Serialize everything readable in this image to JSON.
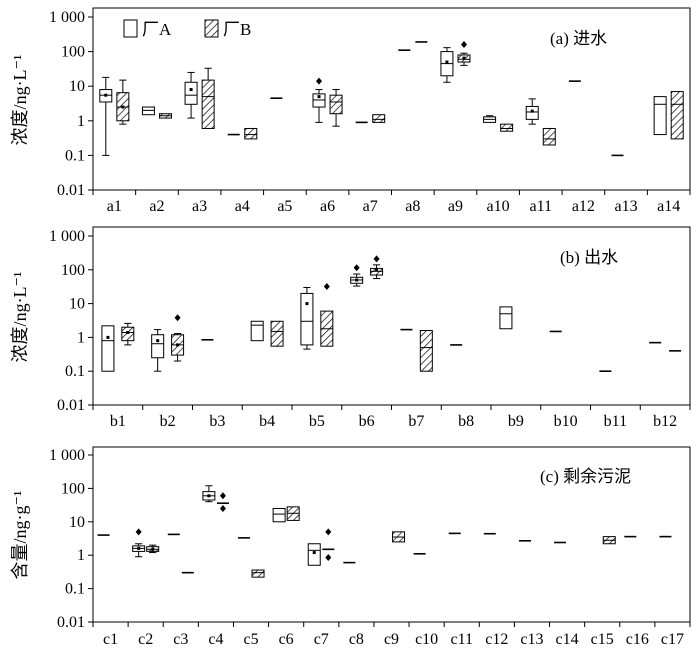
{
  "legend": [
    {
      "name": "厂A",
      "pattern": "open"
    },
    {
      "name": "厂B",
      "pattern": "hatch"
    }
  ],
  "chart_data": [
    {
      "type": "box",
      "title": "(a) 进水",
      "ylabel": "浓度/ng·L⁻¹",
      "yscale": "log",
      "ylim": [
        0.01,
        1000
      ],
      "yticks": [
        "0.01",
        "0.1",
        "1",
        "10",
        "100",
        "1 000"
      ],
      "categories": [
        "a1",
        "a2",
        "a3",
        "a4",
        "a5",
        "a6",
        "a7",
        "a8",
        "a9",
        "a10",
        "a11",
        "a12",
        "a13",
        "a14"
      ],
      "series": [
        {
          "name": "厂A",
          "boxes": [
            {
              "cat": "a1",
              "min": 0.1,
              "q1": 3.5,
              "median": 5.5,
              "q3": 8,
              "max": 18,
              "mean": 5.5,
              "outliers": []
            },
            {
              "cat": "a2",
              "min": 1.5,
              "q1": 1.5,
              "median": 2,
              "q3": 2.5,
              "max": 2.5,
              "mean": null,
              "outliers": []
            },
            {
              "cat": "a3",
              "min": 1.2,
              "q1": 3,
              "median": 5.5,
              "q3": 13,
              "max": 25,
              "mean": 8,
              "outliers": []
            },
            {
              "cat": "a4",
              "min": 0.4,
              "q1": 0.4,
              "median": 0.4,
              "q3": 0.4,
              "max": 0.4,
              "mean": null,
              "outliers": []
            },
            {
              "cat": "a5",
              "min": 4.5,
              "q1": 4.5,
              "median": 4.5,
              "q3": 4.5,
              "max": 4.5,
              "mean": null,
              "outliers": []
            },
            {
              "cat": "a6",
              "min": 0.9,
              "q1": 2.5,
              "median": 4,
              "q3": 6,
              "max": 8,
              "mean": 5,
              "outliers": [
                14
              ]
            },
            {
              "cat": "a7",
              "min": 0.9,
              "q1": 0.9,
              "median": 0.9,
              "q3": 0.9,
              "max": 0.9,
              "mean": null,
              "outliers": []
            },
            {
              "cat": "a8",
              "min": 110,
              "q1": 110,
              "median": 110,
              "q3": 110,
              "max": 110,
              "mean": null,
              "outliers": []
            },
            {
              "cat": "a9",
              "min": 13,
              "q1": 20,
              "median": 45,
              "q3": 100,
              "max": 130,
              "mean": 50,
              "outliers": []
            },
            {
              "cat": "a10",
              "min": 0.9,
              "q1": 0.9,
              "median": 1.1,
              "q3": 1.3,
              "max": 1.4,
              "mean": null,
              "outliers": []
            },
            {
              "cat": "a11",
              "min": 0.8,
              "q1": 1.1,
              "median": 1.8,
              "q3": 2.6,
              "max": 4.3,
              "mean": 1.9,
              "outliers": []
            },
            {
              "cat": "a12",
              "min": 14,
              "q1": 14,
              "median": 14,
              "q3": 14,
              "max": 14,
              "mean": null,
              "outliers": []
            },
            {
              "cat": "a13",
              "min": 0.1,
              "q1": 0.1,
              "median": 0.1,
              "q3": 0.1,
              "max": 0.1,
              "mean": null,
              "outliers": []
            },
            {
              "cat": "a14",
              "min": 0.4,
              "q1": 0.4,
              "median": 3,
              "q3": 5,
              "max": 5,
              "mean": null,
              "outliers": []
            }
          ]
        },
        {
          "name": "厂B",
          "boxes": [
            {
              "cat": "a1",
              "min": 0.8,
              "q1": 1,
              "median": 2.5,
              "q3": 6.5,
              "max": 15,
              "mean": 2.5,
              "outliers": []
            },
            {
              "cat": "a2",
              "min": 1.2,
              "q1": 1.2,
              "median": 1.4,
              "q3": 1.6,
              "max": 1.6,
              "mean": null,
              "outliers": []
            },
            {
              "cat": "a3",
              "min": 0.6,
              "q1": 0.6,
              "median": 5,
              "q3": 15,
              "max": 33,
              "mean": null,
              "outliers": []
            },
            {
              "cat": "a4",
              "min": 0.3,
              "q1": 0.3,
              "median": 0.4,
              "q3": 0.6,
              "max": 0.6,
              "mean": null,
              "outliers": []
            },
            {
              "cat": "a6",
              "min": 0.7,
              "q1": 1.6,
              "median": 3.5,
              "q3": 5.5,
              "max": 8,
              "mean": null,
              "outliers": []
            },
            {
              "cat": "a7",
              "min": 0.9,
              "q1": 0.9,
              "median": 1.1,
              "q3": 1.5,
              "max": 1.5,
              "mean": null,
              "outliers": []
            },
            {
              "cat": "a8",
              "min": 190,
              "q1": 190,
              "median": 190,
              "q3": 190,
              "max": 190,
              "mean": null,
              "outliers": []
            },
            {
              "cat": "a9",
              "min": 40,
              "q1": 50,
              "median": 60,
              "q3": 80,
              "max": 90,
              "mean": 65,
              "outliers": [
                160
              ]
            },
            {
              "cat": "a10",
              "min": 0.5,
              "q1": 0.5,
              "median": 0.6,
              "q3": 0.8,
              "max": 0.8,
              "mean": null,
              "outliers": []
            },
            {
              "cat": "a11",
              "min": 0.2,
              "q1": 0.2,
              "median": 0.3,
              "q3": 0.6,
              "max": 0.6,
              "mean": null,
              "outliers": []
            },
            {
              "cat": "a14",
              "min": 0.3,
              "q1": 0.3,
              "median": 3,
              "q3": 7,
              "max": 7,
              "mean": null,
              "outliers": []
            }
          ]
        }
      ]
    },
    {
      "type": "box",
      "title": "(b) 出水",
      "ylabel": "浓度/ng·L⁻¹",
      "yscale": "log",
      "ylim": [
        0.01,
        1000
      ],
      "yticks": [
        "0.01",
        "0.1",
        "1",
        "10",
        "100",
        "1 000"
      ],
      "categories": [
        "b1",
        "b2",
        "b3",
        "b4",
        "b5",
        "b6",
        "b7",
        "b8",
        "b9",
        "b10",
        "b11",
        "b12"
      ],
      "series": [
        {
          "name": "厂A",
          "boxes": [
            {
              "cat": "b1",
              "min": 0.1,
              "q1": 0.1,
              "median": 0.8,
              "q3": 2.2,
              "max": 2.2,
              "mean": 1,
              "outliers": []
            },
            {
              "cat": "b2",
              "min": 0.1,
              "q1": 0.25,
              "median": 0.65,
              "q3": 1.2,
              "max": 1.7,
              "mean": 0.8,
              "outliers": []
            },
            {
              "cat": "b3",
              "min": 0.85,
              "q1": 0.85,
              "median": 0.85,
              "q3": 0.85,
              "max": 0.85,
              "mean": null,
              "outliers": []
            },
            {
              "cat": "b4",
              "min": 0.8,
              "q1": 0.8,
              "median": 2.3,
              "q3": 3,
              "max": 3,
              "mean": null,
              "outliers": []
            },
            {
              "cat": "b5",
              "min": 0.45,
              "q1": 0.6,
              "median": 3,
              "q3": 20,
              "max": 30,
              "mean": 10,
              "outliers": []
            },
            {
              "cat": "b6",
              "min": 33,
              "q1": 40,
              "median": 50,
              "q3": 60,
              "max": 75,
              "mean": 50,
              "outliers": [
                115
              ]
            },
            {
              "cat": "b7",
              "min": 1.7,
              "q1": 1.7,
              "median": 1.7,
              "q3": 1.7,
              "max": 1.7,
              "mean": null,
              "outliers": []
            },
            {
              "cat": "b8",
              "min": 0.6,
              "q1": 0.6,
              "median": 0.6,
              "q3": 0.6,
              "max": 0.6,
              "mean": null,
              "outliers": []
            },
            {
              "cat": "b9",
              "min": 1.8,
              "q1": 1.8,
              "median": 5,
              "q3": 8,
              "max": 8,
              "mean": null,
              "outliers": []
            },
            {
              "cat": "b10",
              "min": 1.5,
              "q1": 1.5,
              "median": 1.5,
              "q3": 1.5,
              "max": 1.5,
              "mean": null,
              "outliers": []
            },
            {
              "cat": "b11",
              "min": 0.1,
              "q1": 0.1,
              "median": 0.1,
              "q3": 0.1,
              "max": 0.1,
              "mean": null,
              "outliers": []
            },
            {
              "cat": "b12",
              "min": 0.7,
              "q1": 0.7,
              "median": 0.7,
              "q3": 0.7,
              "max": 0.7,
              "mean": null,
              "outliers": []
            }
          ]
        },
        {
          "name": "厂B",
          "boxes": [
            {
              "cat": "b1",
              "min": 0.6,
              "q1": 0.8,
              "median": 1.4,
              "q3": 2,
              "max": 2.6,
              "mean": 1.4,
              "outliers": []
            },
            {
              "cat": "b2",
              "min": 0.2,
              "q1": 0.3,
              "median": 0.6,
              "q3": 1.2,
              "max": 1.3,
              "mean": 0.6,
              "outliers": [
                3.8
              ]
            },
            {
              "cat": "b4",
              "min": 0.55,
              "q1": 0.55,
              "median": 1.5,
              "q3": 3,
              "max": 3,
              "mean": null,
              "outliers": []
            },
            {
              "cat": "b5",
              "min": 0.55,
              "q1": 0.55,
              "median": 1.8,
              "q3": 6,
              "max": 6,
              "mean": null,
              "outliers": [
                32
              ]
            },
            {
              "cat": "b6",
              "min": 55,
              "q1": 70,
              "median": 90,
              "q3": 110,
              "max": 140,
              "mean": 100,
              "outliers": [
                210
              ]
            },
            {
              "cat": "b7",
              "min": 0.1,
              "q1": 0.1,
              "median": 0.5,
              "q3": 1.6,
              "max": 1.6,
              "mean": null,
              "outliers": []
            },
            {
              "cat": "b12",
              "min": 0.4,
              "q1": 0.4,
              "median": 0.4,
              "q3": 0.4,
              "max": 0.4,
              "mean": null,
              "outliers": []
            }
          ]
        }
      ]
    },
    {
      "type": "box",
      "title": "(c) 剩余污泥",
      "ylabel": "含量/ng·g⁻¹",
      "yscale": "log",
      "ylim": [
        0.01,
        1000
      ],
      "yticks": [
        "0.01",
        "0.1",
        "1",
        "10",
        "100",
        "1 000"
      ],
      "categories": [
        "c1",
        "c2",
        "c3",
        "c4",
        "c5",
        "c6",
        "c7",
        "c8",
        "c9",
        "c10",
        "c11",
        "c12",
        "c13",
        "c14",
        "c15",
        "c16",
        "c17"
      ],
      "series": [
        {
          "name": "厂A",
          "boxes": [
            {
              "cat": "c1",
              "min": 4,
              "q1": 4,
              "median": 4,
              "q3": 4,
              "max": 4,
              "mean": null,
              "outliers": []
            },
            {
              "cat": "c2",
              "min": 0.9,
              "q1": 1.3,
              "median": 1.6,
              "q3": 1.9,
              "max": 2.2,
              "mean": 1.6,
              "outliers": [
                5
              ]
            },
            {
              "cat": "c3",
              "min": 4.2,
              "q1": 4.2,
              "median": 4.2,
              "q3": 4.2,
              "max": 4.2,
              "mean": null,
              "outliers": []
            },
            {
              "cat": "c4",
              "min": 40,
              "q1": 45,
              "median": 60,
              "q3": 80,
              "max": 120,
              "mean": 60,
              "outliers": []
            },
            {
              "cat": "c5",
              "min": 3.3,
              "q1": 3.3,
              "median": 3.3,
              "q3": 3.3,
              "max": 3.3,
              "mean": null,
              "outliers": []
            },
            {
              "cat": "c6",
              "min": 10,
              "q1": 10,
              "median": 17,
              "q3": 25,
              "max": 25,
              "mean": null,
              "outliers": []
            },
            {
              "cat": "c7",
              "min": 0.5,
              "q1": 0.5,
              "median": 1.4,
              "q3": 2.2,
              "max": 2.2,
              "mean": 1.2,
              "outliers": []
            },
            {
              "cat": "c8",
              "min": 0.6,
              "q1": 0.6,
              "median": 0.6,
              "q3": 0.6,
              "max": 0.6,
              "mean": null,
              "outliers": []
            },
            {
              "cat": "c10",
              "min": 1.1,
              "q1": 1.1,
              "median": 1.1,
              "q3": 1.1,
              "max": 1.1,
              "mean": null,
              "outliers": []
            },
            {
              "cat": "c11",
              "min": 4.5,
              "q1": 4.5,
              "median": 4.5,
              "q3": 4.5,
              "max": 4.5,
              "mean": null,
              "outliers": []
            },
            {
              "cat": "c12",
              "min": 4.4,
              "q1": 4.4,
              "median": 4.4,
              "q3": 4.4,
              "max": 4.4,
              "mean": null,
              "outliers": []
            },
            {
              "cat": "c13",
              "min": 2.7,
              "q1": 2.7,
              "median": 2.7,
              "q3": 2.7,
              "max": 2.7,
              "mean": null,
              "outliers": []
            },
            {
              "cat": "c14",
              "min": 2.4,
              "q1": 2.4,
              "median": 2.4,
              "q3": 2.4,
              "max": 2.4,
              "mean": null,
              "outliers": []
            },
            {
              "cat": "c16",
              "min": 3.6,
              "q1": 3.6,
              "median": 3.6,
              "q3": 3.6,
              "max": 3.6,
              "mean": null,
              "outliers": []
            },
            {
              "cat": "c17",
              "min": 3.6,
              "q1": 3.6,
              "median": 3.6,
              "q3": 3.6,
              "max": 3.6,
              "mean": null,
              "outliers": []
            }
          ]
        },
        {
          "name": "厂B",
          "boxes": [
            {
              "cat": "c2",
              "min": 1.2,
              "q1": 1.3,
              "median": 1.5,
              "q3": 1.8,
              "max": 2,
              "mean": 1.5,
              "outliers": []
            },
            {
              "cat": "c3",
              "min": 0.3,
              "q1": 0.3,
              "median": 0.3,
              "q3": 0.3,
              "max": 0.3,
              "mean": null,
              "outliers": []
            },
            {
              "cat": "c4",
              "min": 36,
              "q1": 36,
              "median": 36,
              "q3": 36,
              "max": 36,
              "mean": null,
              "outliers": [
                60,
                25
              ]
            },
            {
              "cat": "c5",
              "min": 0.22,
              "q1": 0.22,
              "median": 0.3,
              "q3": 0.36,
              "max": 0.36,
              "mean": null,
              "outliers": []
            },
            {
              "cat": "c6",
              "min": 11,
              "q1": 11,
              "median": 18,
              "q3": 28,
              "max": 28,
              "mean": null,
              "outliers": []
            },
            {
              "cat": "c7",
              "min": 1.5,
              "q1": 1.5,
              "median": 1.5,
              "q3": 1.5,
              "max": 1.5,
              "mean": null,
              "outliers": [
                5,
                0.85
              ]
            },
            {
              "cat": "c9",
              "min": 2.5,
              "q1": 2.5,
              "median": 3.5,
              "q3": 5,
              "max": 5,
              "mean": null,
              "outliers": []
            },
            {
              "cat": "c15",
              "min": 2.2,
              "q1": 2.2,
              "median": 2.8,
              "q3": 3.6,
              "max": 3.6,
              "mean": null,
              "outliers": []
            }
          ]
        }
      ]
    }
  ]
}
